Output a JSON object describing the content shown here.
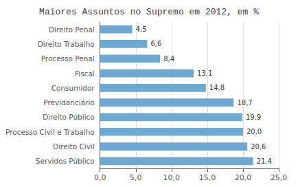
{
  "chart_data": {
    "type": "bar",
    "orientation": "horizontal",
    "title": "Maiores Assuntos no Supremo em 2012, em %",
    "categories": [
      "Servidos Público",
      "Direito Civil",
      "Processo Civil e Trabalho",
      "Direito Público",
      "Previdanciário",
      "Consumidor",
      "Fiscal",
      "Processo Penal",
      "Direito Trabalho",
      "Direito Penal"
    ],
    "values": [
      21.4,
      20.6,
      20.0,
      19.9,
      18.7,
      14.8,
      13.1,
      8.4,
      6.6,
      4.5
    ],
    "value_labels": [
      "21,4",
      "20,6",
      "20,0",
      "19,9",
      "18,7",
      "14,8",
      "13,1",
      "8,4",
      "6,6",
      "4,5"
    ],
    "data_labels": true,
    "color": "#6fa8d0",
    "xlim": [
      0,
      25
    ],
    "xticks": [
      {
        "value": 0,
        "label": "0,0"
      },
      {
        "value": 5,
        "label": "5,0"
      },
      {
        "value": 10,
        "label": "10,0"
      },
      {
        "value": 15,
        "label": "15,0"
      },
      {
        "value": 20,
        "label": "20,0"
      },
      {
        "value": 25,
        "label": "25,0"
      }
    ],
    "grid": true
  }
}
